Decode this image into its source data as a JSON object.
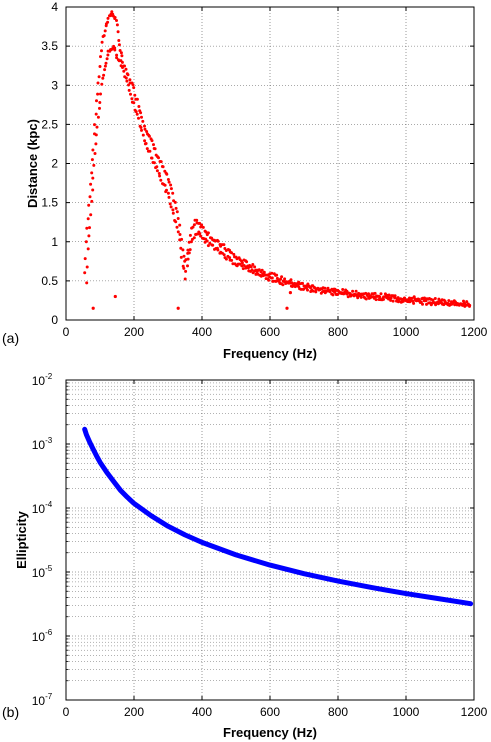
{
  "chart_data": [
    {
      "panel_label": "(a)",
      "type": "scatter",
      "xlabel": "Frequency (Hz)",
      "ylabel": "Distance (kpc)",
      "xlim": [
        0,
        1200
      ],
      "ylim": [
        0,
        4
      ],
      "xticks": [
        0,
        200,
        400,
        600,
        800,
        1000,
        1200
      ],
      "yticks": [
        0,
        0.5,
        1,
        1.5,
        2,
        2.5,
        3,
        3.5,
        4
      ],
      "grid": true,
      "marker_color": "#ff0000",
      "series": [
        {
          "upper_branch": [
            [
              55,
              0.6
            ],
            [
              60,
              1.0
            ],
            [
              65,
              1.3
            ],
            [
              70,
              1.6
            ],
            [
              75,
              1.9
            ],
            [
              80,
              2.2
            ],
            [
              85,
              2.5
            ],
            [
              90,
              2.8
            ],
            [
              95,
              3.0
            ],
            [
              100,
              3.25
            ],
            [
              105,
              3.45
            ],
            [
              110,
              3.6
            ],
            [
              115,
              3.7
            ],
            [
              120,
              3.8
            ],
            [
              125,
              3.86
            ],
            [
              130,
              3.9
            ],
            [
              135,
              3.92
            ],
            [
              140,
              3.9
            ],
            [
              145,
              3.85
            ],
            [
              150,
              3.75
            ],
            [
              155,
              3.6
            ],
            [
              160,
              3.45
            ],
            [
              165,
              3.35
            ],
            [
              170,
              3.25
            ],
            [
              180,
              3.15
            ],
            [
              190,
              3.05
            ],
            [
              200,
              2.95
            ],
            [
              210,
              2.8
            ],
            [
              220,
              2.65
            ],
            [
              230,
              2.5
            ],
            [
              240,
              2.4
            ],
            [
              250,
              2.3
            ],
            [
              260,
              2.2
            ],
            [
              270,
              2.1
            ],
            [
              280,
              2.0
            ],
            [
              290,
              1.9
            ],
            [
              300,
              1.8
            ],
            [
              310,
              1.65
            ],
            [
              320,
              1.5
            ],
            [
              330,
              1.3
            ],
            [
              340,
              1.0
            ],
            [
              350,
              0.75
            ],
            [
              360,
              0.9
            ],
            [
              370,
              1.15
            ],
            [
              380,
              1.28
            ],
            [
              390,
              1.25
            ],
            [
              400,
              1.2
            ],
            [
              420,
              1.1
            ],
            [
              440,
              1.0
            ],
            [
              460,
              0.95
            ],
            [
              480,
              0.88
            ],
            [
              500,
              0.8
            ],
            [
              520,
              0.75
            ],
            [
              550,
              0.68
            ],
            [
              600,
              0.58
            ],
            [
              650,
              0.5
            ],
            [
              700,
              0.45
            ],
            [
              750,
              0.4
            ],
            [
              800,
              0.37
            ],
            [
              850,
              0.34
            ],
            [
              900,
              0.32
            ],
            [
              950,
              0.3
            ],
            [
              1000,
              0.28
            ],
            [
              1050,
              0.26
            ],
            [
              1100,
              0.24
            ],
            [
              1150,
              0.22
            ],
            [
              1190,
              0.21
            ]
          ],
          "lower_branch": [
            [
              60,
              0.5
            ],
            [
              65,
              0.9
            ],
            [
              70,
              1.2
            ],
            [
              75,
              1.5
            ],
            [
              80,
              1.8
            ],
            [
              85,
              2.1
            ],
            [
              90,
              2.35
            ],
            [
              95,
              2.6
            ],
            [
              100,
              2.8
            ],
            [
              105,
              3.0
            ],
            [
              110,
              3.15
            ],
            [
              115,
              3.25
            ],
            [
              120,
              3.35
            ],
            [
              125,
              3.42
            ],
            [
              130,
              3.46
            ],
            [
              135,
              3.48
            ],
            [
              140,
              3.47
            ],
            [
              145,
              3.43
            ],
            [
              150,
              3.38
            ],
            [
              160,
              3.3
            ],
            [
              170,
              3.18
            ],
            [
              180,
              3.05
            ],
            [
              190,
              2.9
            ],
            [
              200,
              2.75
            ],
            [
              210,
              2.6
            ],
            [
              220,
              2.45
            ],
            [
              230,
              2.3
            ],
            [
              240,
              2.2
            ],
            [
              250,
              2.1
            ],
            [
              260,
              2.0
            ],
            [
              270,
              1.9
            ],
            [
              280,
              1.8
            ],
            [
              290,
              1.7
            ],
            [
              300,
              1.6
            ],
            [
              310,
              1.45
            ],
            [
              320,
              1.3
            ],
            [
              330,
              1.1
            ],
            [
              340,
              0.8
            ],
            [
              350,
              0.55
            ],
            [
              360,
              0.75
            ],
            [
              370,
              1.0
            ],
            [
              380,
              1.12
            ],
            [
              390,
              1.1
            ],
            [
              400,
              1.05
            ],
            [
              420,
              0.98
            ],
            [
              440,
              0.9
            ],
            [
              460,
              0.85
            ],
            [
              480,
              0.78
            ],
            [
              500,
              0.72
            ],
            [
              520,
              0.68
            ],
            [
              550,
              0.62
            ],
            [
              600,
              0.53
            ],
            [
              650,
              0.46
            ],
            [
              700,
              0.41
            ],
            [
              750,
              0.37
            ],
            [
              800,
              0.34
            ],
            [
              850,
              0.31
            ],
            [
              900,
              0.29
            ],
            [
              950,
              0.27
            ],
            [
              1000,
              0.25
            ],
            [
              1050,
              0.23
            ],
            [
              1100,
              0.22
            ],
            [
              1150,
              0.2
            ],
            [
              1190,
              0.19
            ]
          ],
          "outliers": [
            [
              80,
              0.15
            ],
            [
              145,
              0.3
            ],
            [
              330,
              0.15
            ],
            [
              650,
              0.15
            ],
            [
              660,
              0.35
            ]
          ]
        }
      ]
    },
    {
      "panel_label": "(b)",
      "type": "line",
      "xlabel": "Frequency (Hz)",
      "ylabel": "Ellipticity",
      "xlim": [
        0,
        1200
      ],
      "ylim": [
        1e-07,
        0.01
      ],
      "yscale": "log",
      "xticks": [
        0,
        200,
        400,
        600,
        800,
        1000,
        1200
      ],
      "yticks_exponents": [
        -7,
        -6,
        -5,
        -4,
        -3,
        -2
      ],
      "grid": true,
      "line_color": "#0000ff",
      "series": [
        {
          "x": [
            55,
            60,
            70,
            80,
            90,
            100,
            120,
            140,
            160,
            180,
            200,
            250,
            300,
            350,
            400,
            500,
            600,
            700,
            800,
            900,
            1000,
            1100,
            1190
          ],
          "y": [
            0.0017,
            0.0014,
            0.00106,
            0.00083,
            0.00065,
            0.00052,
            0.00036,
            0.00026,
            0.00019,
            0.000148,
            0.000118,
            7.6e-05,
            5.2e-05,
            3.8e-05,
            2.9e-05,
            1.85e-05,
            1.28e-05,
            9.4e-06,
            7.2e-06,
            5.7e-06,
            4.6e-06,
            3.8e-06,
            3.2e-06
          ]
        }
      ]
    }
  ]
}
